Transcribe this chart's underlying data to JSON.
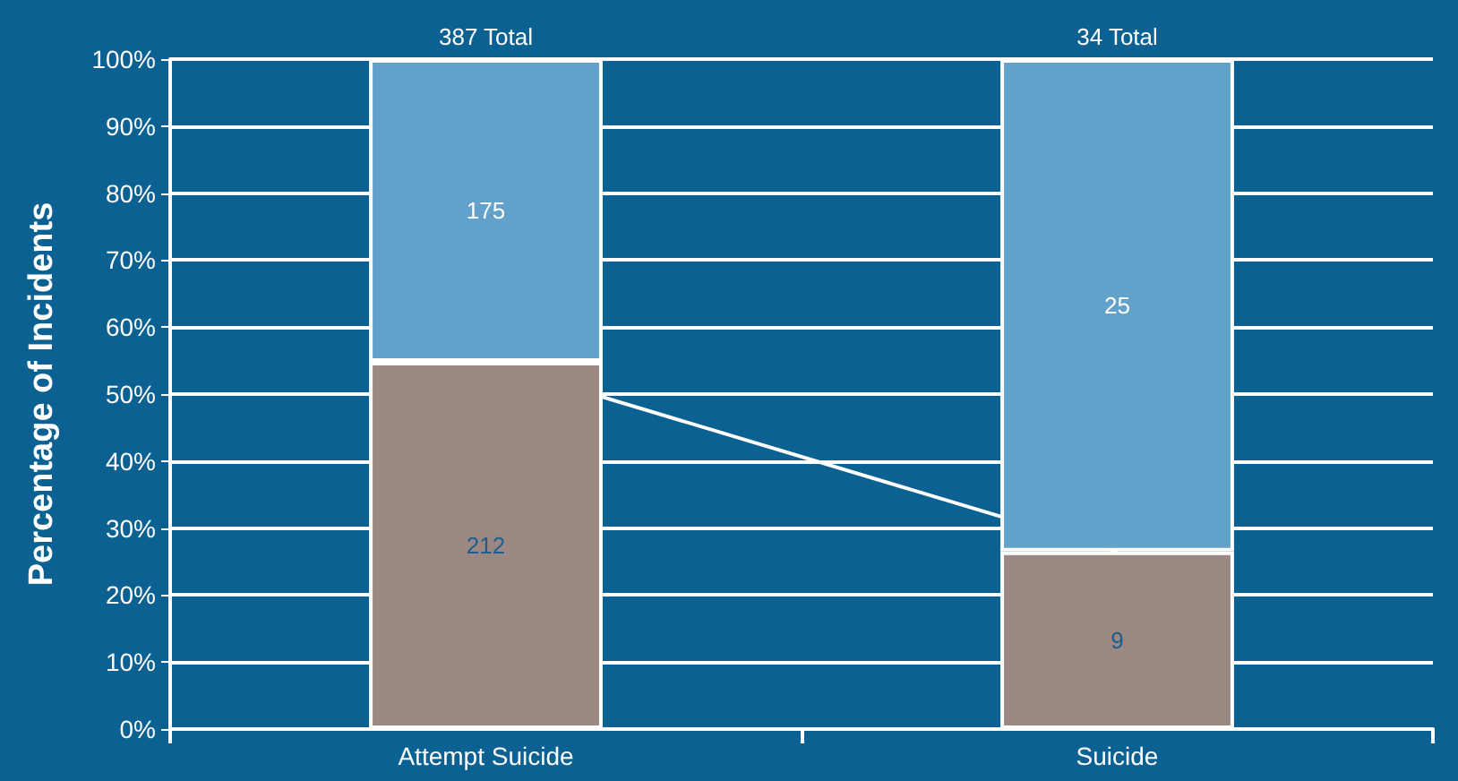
{
  "chart_data": {
    "type": "bar",
    "stacked": true,
    "ylabel": "Percentage of Incidents",
    "categories": [
      "Attempt Suicide",
      "Suicide"
    ],
    "series": [
      {
        "color": "#9b8882",
        "values": [
          54.8,
          26.5
        ]
      },
      {
        "color": "#62a1c9",
        "values": [
          45.2,
          73.5
        ]
      },
      {
        "type": "line",
        "color": "#ffffff",
        "values": [
          54.8,
          26.5
        ]
      }
    ],
    "annotations": [
      "212",
      "9",
      "175",
      "25",
      "387 Total",
      "34 Total"
    ],
    "ylim": [
      0,
      100
    ],
    "yticks": [
      {
        "value": 0,
        "label": "0%"
      },
      {
        "value": 10,
        "label": "10%"
      },
      {
        "value": 20,
        "label": "20%"
      },
      {
        "value": 30,
        "label": "30%"
      },
      {
        "value": 40,
        "label": "40%"
      },
      {
        "value": 50,
        "label": "50%"
      },
      {
        "value": 60,
        "label": "60%"
      },
      {
        "value": 70,
        "label": "70%"
      },
      {
        "value": 80,
        "label": "80%"
      },
      {
        "value": 90,
        "label": "90%"
      },
      {
        "value": 100,
        "label": "100%"
      }
    ],
    "grid": "y",
    "marker": "none"
  }
}
